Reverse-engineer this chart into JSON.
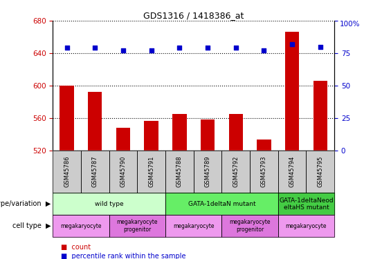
{
  "title": "GDS1316 / 1418386_at",
  "samples": [
    "GSM45786",
    "GSM45787",
    "GSM45790",
    "GSM45791",
    "GSM45788",
    "GSM45789",
    "GSM45792",
    "GSM45793",
    "GSM45794",
    "GSM45795"
  ],
  "counts": [
    600,
    592,
    548,
    556,
    565,
    558,
    565,
    533,
    666,
    606
  ],
  "percentile_values": [
    79,
    79,
    77,
    77,
    79,
    79,
    79,
    77,
    82,
    80
  ],
  "ylim_left": [
    520,
    680
  ],
  "ylim_right": [
    0,
    100
  ],
  "yticks_left": [
    520,
    560,
    600,
    640,
    680
  ],
  "yticks_right": [
    0,
    25,
    50,
    75,
    100
  ],
  "bar_color": "#cc0000",
  "dot_color": "#0000cc",
  "bar_bottom": 520,
  "genotype_groups": [
    {
      "label": "wild type",
      "start": 0,
      "end": 4,
      "color": "#ccffcc"
    },
    {
      "label": "GATA-1deltaN mutant",
      "start": 4,
      "end": 8,
      "color": "#66ee66"
    },
    {
      "label": "GATA-1deltaNeod\neltaHS mutant",
      "start": 8,
      "end": 10,
      "color": "#44cc44"
    }
  ],
  "cell_type_groups": [
    {
      "label": "megakaryocyte",
      "start": 0,
      "end": 2,
      "color": "#ee99ee"
    },
    {
      "label": "megakaryocyte\nprogenitor",
      "start": 2,
      "end": 4,
      "color": "#dd77dd"
    },
    {
      "label": "megakaryocyte",
      "start": 4,
      "end": 6,
      "color": "#ee99ee"
    },
    {
      "label": "megakaryocyte\nprogenitor",
      "start": 6,
      "end": 8,
      "color": "#dd77dd"
    },
    {
      "label": "megakaryocyte",
      "start": 8,
      "end": 10,
      "color": "#ee99ee"
    }
  ],
  "legend_count_label": "count",
  "legend_pct_label": "percentile rank within the sample",
  "tick_label_color_left": "#cc0000",
  "tick_label_color_right": "#0000cc",
  "genotype_label": "genotype/variation",
  "cell_type_label": "cell type"
}
